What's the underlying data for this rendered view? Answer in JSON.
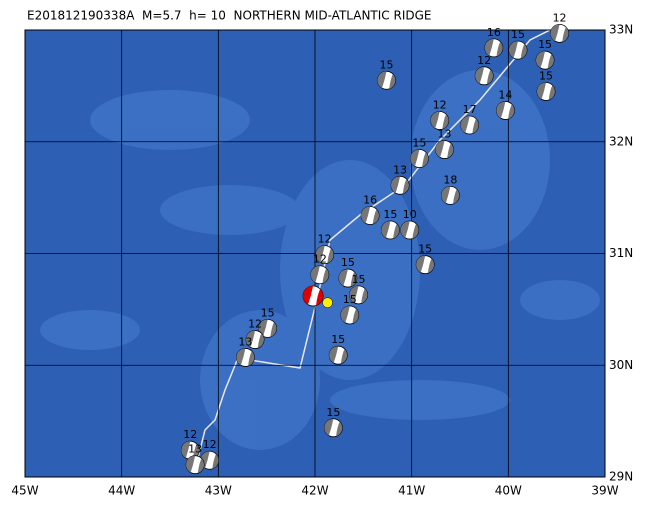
{
  "title": "E201812190338A  M=5.7  h= 10  NORTHERN MID-ATLANTIC RIDGE",
  "map": {
    "lon_range": [
      -45,
      -39
    ],
    "lat_range": [
      29,
      33
    ],
    "lon_ticks": [
      {
        "value": -45,
        "label": "45W"
      },
      {
        "value": -44,
        "label": "44W"
      },
      {
        "value": -43,
        "label": "43W"
      },
      {
        "value": -42,
        "label": "42W"
      },
      {
        "value": -41,
        "label": "41W"
      },
      {
        "value": -40,
        "label": "40W"
      },
      {
        "value": -39,
        "label": "39W"
      }
    ],
    "lat_ticks": [
      {
        "value": 29,
        "label": "29N"
      },
      {
        "value": 30,
        "label": "30N"
      },
      {
        "value": 31,
        "label": "31N"
      },
      {
        "value": 32,
        "label": "32N"
      },
      {
        "value": 33,
        "label": "33N"
      }
    ]
  },
  "main_event": {
    "lon": -42.02,
    "lat": 30.62,
    "color": "#e00000"
  },
  "epicenter": {
    "lon": -41.87,
    "lat": 30.56,
    "color": "#ffee00"
  },
  "events": [
    {
      "lon": -41.26,
      "lat": 32.55,
      "depth": 15
    },
    {
      "lon": -39.47,
      "lat": 32.97,
      "depth": 12
    },
    {
      "lon": -39.9,
      "lat": 32.82,
      "depth": 15
    },
    {
      "lon": -39.62,
      "lat": 32.73,
      "depth": 15
    },
    {
      "lon": -40.15,
      "lat": 32.84,
      "depth": 16
    },
    {
      "lon": -39.61,
      "lat": 32.45,
      "depth": 15
    },
    {
      "lon": -40.25,
      "lat": 32.59,
      "depth": 12
    },
    {
      "lon": -40.03,
      "lat": 32.28,
      "depth": 14
    },
    {
      "lon": -40.71,
      "lat": 32.19,
      "depth": 12
    },
    {
      "lon": -40.4,
      "lat": 32.15,
      "depth": 17
    },
    {
      "lon": -40.66,
      "lat": 31.93,
      "depth": 13
    },
    {
      "lon": -40.92,
      "lat": 31.85,
      "depth": 15
    },
    {
      "lon": -41.12,
      "lat": 31.61,
      "depth": 13
    },
    {
      "lon": -40.6,
      "lat": 31.52,
      "depth": 18
    },
    {
      "lon": -41.43,
      "lat": 31.34,
      "depth": 16
    },
    {
      "lon": -41.22,
      "lat": 31.21,
      "depth": 15
    },
    {
      "lon": -41.02,
      "lat": 31.21,
      "depth": 10
    },
    {
      "lon": -40.86,
      "lat": 30.9,
      "depth": 15
    },
    {
      "lon": -41.9,
      "lat": 30.99,
      "depth": 12
    },
    {
      "lon": -41.95,
      "lat": 30.81,
      "depth": 12
    },
    {
      "lon": -41.66,
      "lat": 30.78,
      "depth": 15
    },
    {
      "lon": -41.55,
      "lat": 30.63,
      "depth": 15
    },
    {
      "lon": -41.64,
      "lat": 30.45,
      "depth": 15
    },
    {
      "lon": -41.76,
      "lat": 30.09,
      "depth": 15
    },
    {
      "lon": -42.49,
      "lat": 30.33,
      "depth": 15
    },
    {
      "lon": -42.62,
      "lat": 30.23,
      "depth": 12
    },
    {
      "lon": -42.72,
      "lat": 30.07,
      "depth": 13
    },
    {
      "lon": -41.81,
      "lat": 29.44,
      "depth": 15
    },
    {
      "lon": -43.29,
      "lat": 29.24,
      "depth": 12
    },
    {
      "lon": -43.09,
      "lat": 29.15,
      "depth": 12
    },
    {
      "lon": -43.24,
      "lat": 29.11,
      "depth": 13
    }
  ]
}
